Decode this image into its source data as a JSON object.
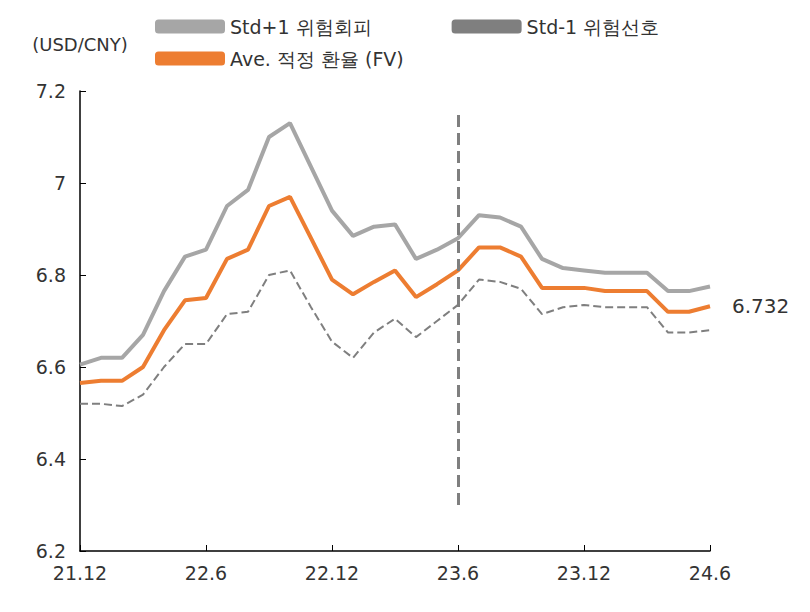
{
  "chart_data": {
    "type": "line",
    "y_label": "(USD/CNY)",
    "categories": [
      "21.12",
      null,
      null,
      null,
      null,
      null,
      "22.6",
      null,
      null,
      null,
      null,
      null,
      "22.12",
      null,
      null,
      null,
      null,
      null,
      "23.6",
      null,
      null,
      null,
      null,
      null,
      "23.12",
      null,
      null,
      null,
      null,
      null,
      "24.6"
    ],
    "series": [
      {
        "name": "Std+1 위험회피",
        "color": "#a6a6a6",
        "line_style": "solid",
        "values": [
          6.605,
          6.62,
          6.62,
          6.67,
          6.765,
          6.84,
          6.855,
          6.95,
          6.985,
          7.1,
          7.13,
          7.035,
          6.94,
          6.885,
          6.905,
          6.91,
          6.835,
          6.855,
          6.88,
          6.93,
          6.925,
          6.905,
          6.835,
          6.815,
          6.81,
          6.805,
          6.805,
          6.805,
          6.765,
          6.765,
          6.775
        ]
      },
      {
        "name": "Std-1 위험선호",
        "color": "#7f7f7f",
        "line_style": "dashed",
        "values": [
          6.52,
          6.52,
          6.515,
          6.54,
          6.6,
          6.65,
          6.65,
          6.715,
          6.72,
          6.8,
          6.81,
          6.73,
          6.655,
          6.62,
          6.675,
          6.705,
          6.665,
          6.7,
          6.735,
          6.79,
          6.785,
          6.77,
          6.715,
          6.73,
          6.735,
          6.73,
          6.73,
          6.73,
          6.675,
          6.675,
          6.68
        ]
      },
      {
        "name": "Ave. 적정 환율 (FV)",
        "color": "#ed7d31",
        "line_style": "solid",
        "values": [
          6.565,
          6.57,
          6.57,
          6.6,
          6.68,
          6.745,
          6.75,
          6.835,
          6.855,
          6.95,
          6.97,
          6.88,
          6.79,
          6.758,
          6.785,
          6.81,
          6.752,
          6.78,
          6.81,
          6.86,
          6.86,
          6.84,
          6.772,
          6.772,
          6.772,
          6.765,
          6.765,
          6.765,
          6.72,
          6.72,
          6.732
        ]
      }
    ],
    "annotations": [
      {
        "type": "vline",
        "x_index": 18,
        "y_from": 6.3,
        "y_to": 7.15,
        "color": "#7f7f7f",
        "line_style": "dashed"
      },
      {
        "type": "text",
        "text": "6.732",
        "x_index": 30,
        "y": 6.732,
        "series": "Ave. 적정 환율 (FV)"
      }
    ],
    "ylim": [
      6.2,
      7.2
    ],
    "yticks": [
      6.2,
      6.4,
      6.6,
      6.8,
      7,
      7.2
    ],
    "grid": false
  }
}
